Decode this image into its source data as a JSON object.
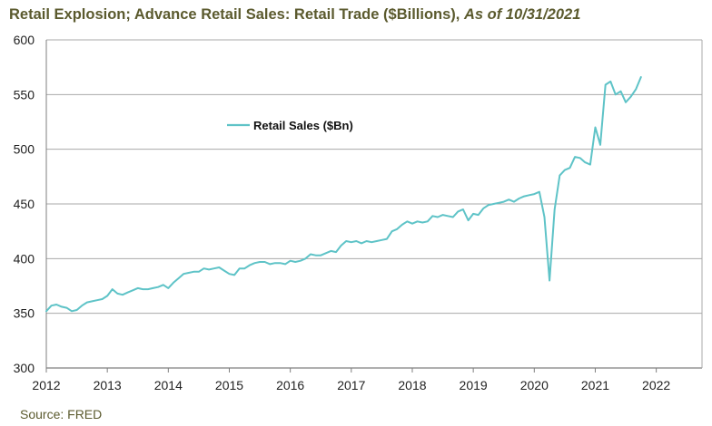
{
  "header": {
    "title_main": "Retail Explosion; Advance Retail Sales: Retail Trade ($Billions), ",
    "title_asof": "As of 10/31/2021"
  },
  "footer": {
    "source": "Source: FRED"
  },
  "colors": {
    "line": "#5ec3c7",
    "grid": "#a8a8a8",
    "axis": "#7f7f7f",
    "title": "#5b5a2e"
  },
  "chart_data": {
    "type": "line",
    "title": "Retail Explosion; Advance Retail Sales: Retail Trade ($Billions), As of 10/31/2021",
    "xlabel": "",
    "ylabel": "",
    "xlim": [
      2012,
      2022.75
    ],
    "ylim": [
      300,
      600
    ],
    "yticks": [
      300,
      350,
      400,
      450,
      500,
      550,
      600
    ],
    "xticks": [
      2012,
      2013,
      2014,
      2015,
      2016,
      2017,
      2018,
      2019,
      2020,
      2021,
      2022
    ],
    "grid": "horizontal",
    "legend_position": "upper-left",
    "series": [
      {
        "name": "Retail Sales ($Bn)",
        "x": [
          2012.0,
          2012.083,
          2012.167,
          2012.25,
          2012.333,
          2012.417,
          2012.5,
          2012.583,
          2012.667,
          2012.75,
          2012.833,
          2012.917,
          2013.0,
          2013.083,
          2013.167,
          2013.25,
          2013.333,
          2013.417,
          2013.5,
          2013.583,
          2013.667,
          2013.75,
          2013.833,
          2013.917,
          2014.0,
          2014.083,
          2014.167,
          2014.25,
          2014.333,
          2014.417,
          2014.5,
          2014.583,
          2014.667,
          2014.75,
          2014.833,
          2014.917,
          2015.0,
          2015.083,
          2015.167,
          2015.25,
          2015.333,
          2015.417,
          2015.5,
          2015.583,
          2015.667,
          2015.75,
          2015.833,
          2015.917,
          2016.0,
          2016.083,
          2016.167,
          2016.25,
          2016.333,
          2016.417,
          2016.5,
          2016.583,
          2016.667,
          2016.75,
          2016.833,
          2016.917,
          2017.0,
          2017.083,
          2017.167,
          2017.25,
          2017.333,
          2017.417,
          2017.5,
          2017.583,
          2017.667,
          2017.75,
          2017.833,
          2017.917,
          2018.0,
          2018.083,
          2018.167,
          2018.25,
          2018.333,
          2018.417,
          2018.5,
          2018.583,
          2018.667,
          2018.75,
          2018.833,
          2018.917,
          2019.0,
          2019.083,
          2019.167,
          2019.25,
          2019.333,
          2019.417,
          2019.5,
          2019.583,
          2019.667,
          2019.75,
          2019.833,
          2019.917,
          2020.0,
          2020.083,
          2020.167,
          2020.25,
          2020.333,
          2020.417,
          2020.5,
          2020.583,
          2020.667,
          2020.75,
          2020.833,
          2020.917,
          2021.0,
          2021.083,
          2021.167,
          2021.25,
          2021.333,
          2021.417,
          2021.5,
          2021.583,
          2021.667,
          2021.75
        ],
        "values": [
          352,
          357,
          358,
          356,
          355,
          352,
          353,
          357,
          360,
          361,
          362,
          363,
          366,
          372,
          368,
          367,
          369,
          371,
          373,
          372,
          372,
          373,
          374,
          376,
          373,
          378,
          382,
          386,
          387,
          388,
          388,
          391,
          390,
          391,
          392,
          389,
          386,
          385,
          391,
          391,
          394,
          396,
          397,
          397,
          395,
          396,
          396,
          395,
          398,
          397,
          398,
          400,
          404,
          403,
          403,
          405,
          407,
          406,
          412,
          416,
          415,
          416,
          414,
          416,
          415,
          416,
          417,
          418,
          425,
          427,
          431,
          434,
          432,
          434,
          433,
          434,
          439,
          438,
          440,
          439,
          438,
          443,
          445,
          435,
          441,
          440,
          446,
          449,
          450,
          451,
          452,
          454,
          452,
          455,
          457,
          458,
          459,
          461,
          438,
          380,
          445,
          476,
          481,
          483,
          493,
          492,
          488,
          486,
          520,
          504,
          559,
          562,
          550,
          553,
          543,
          548,
          555,
          566
        ]
      }
    ]
  }
}
